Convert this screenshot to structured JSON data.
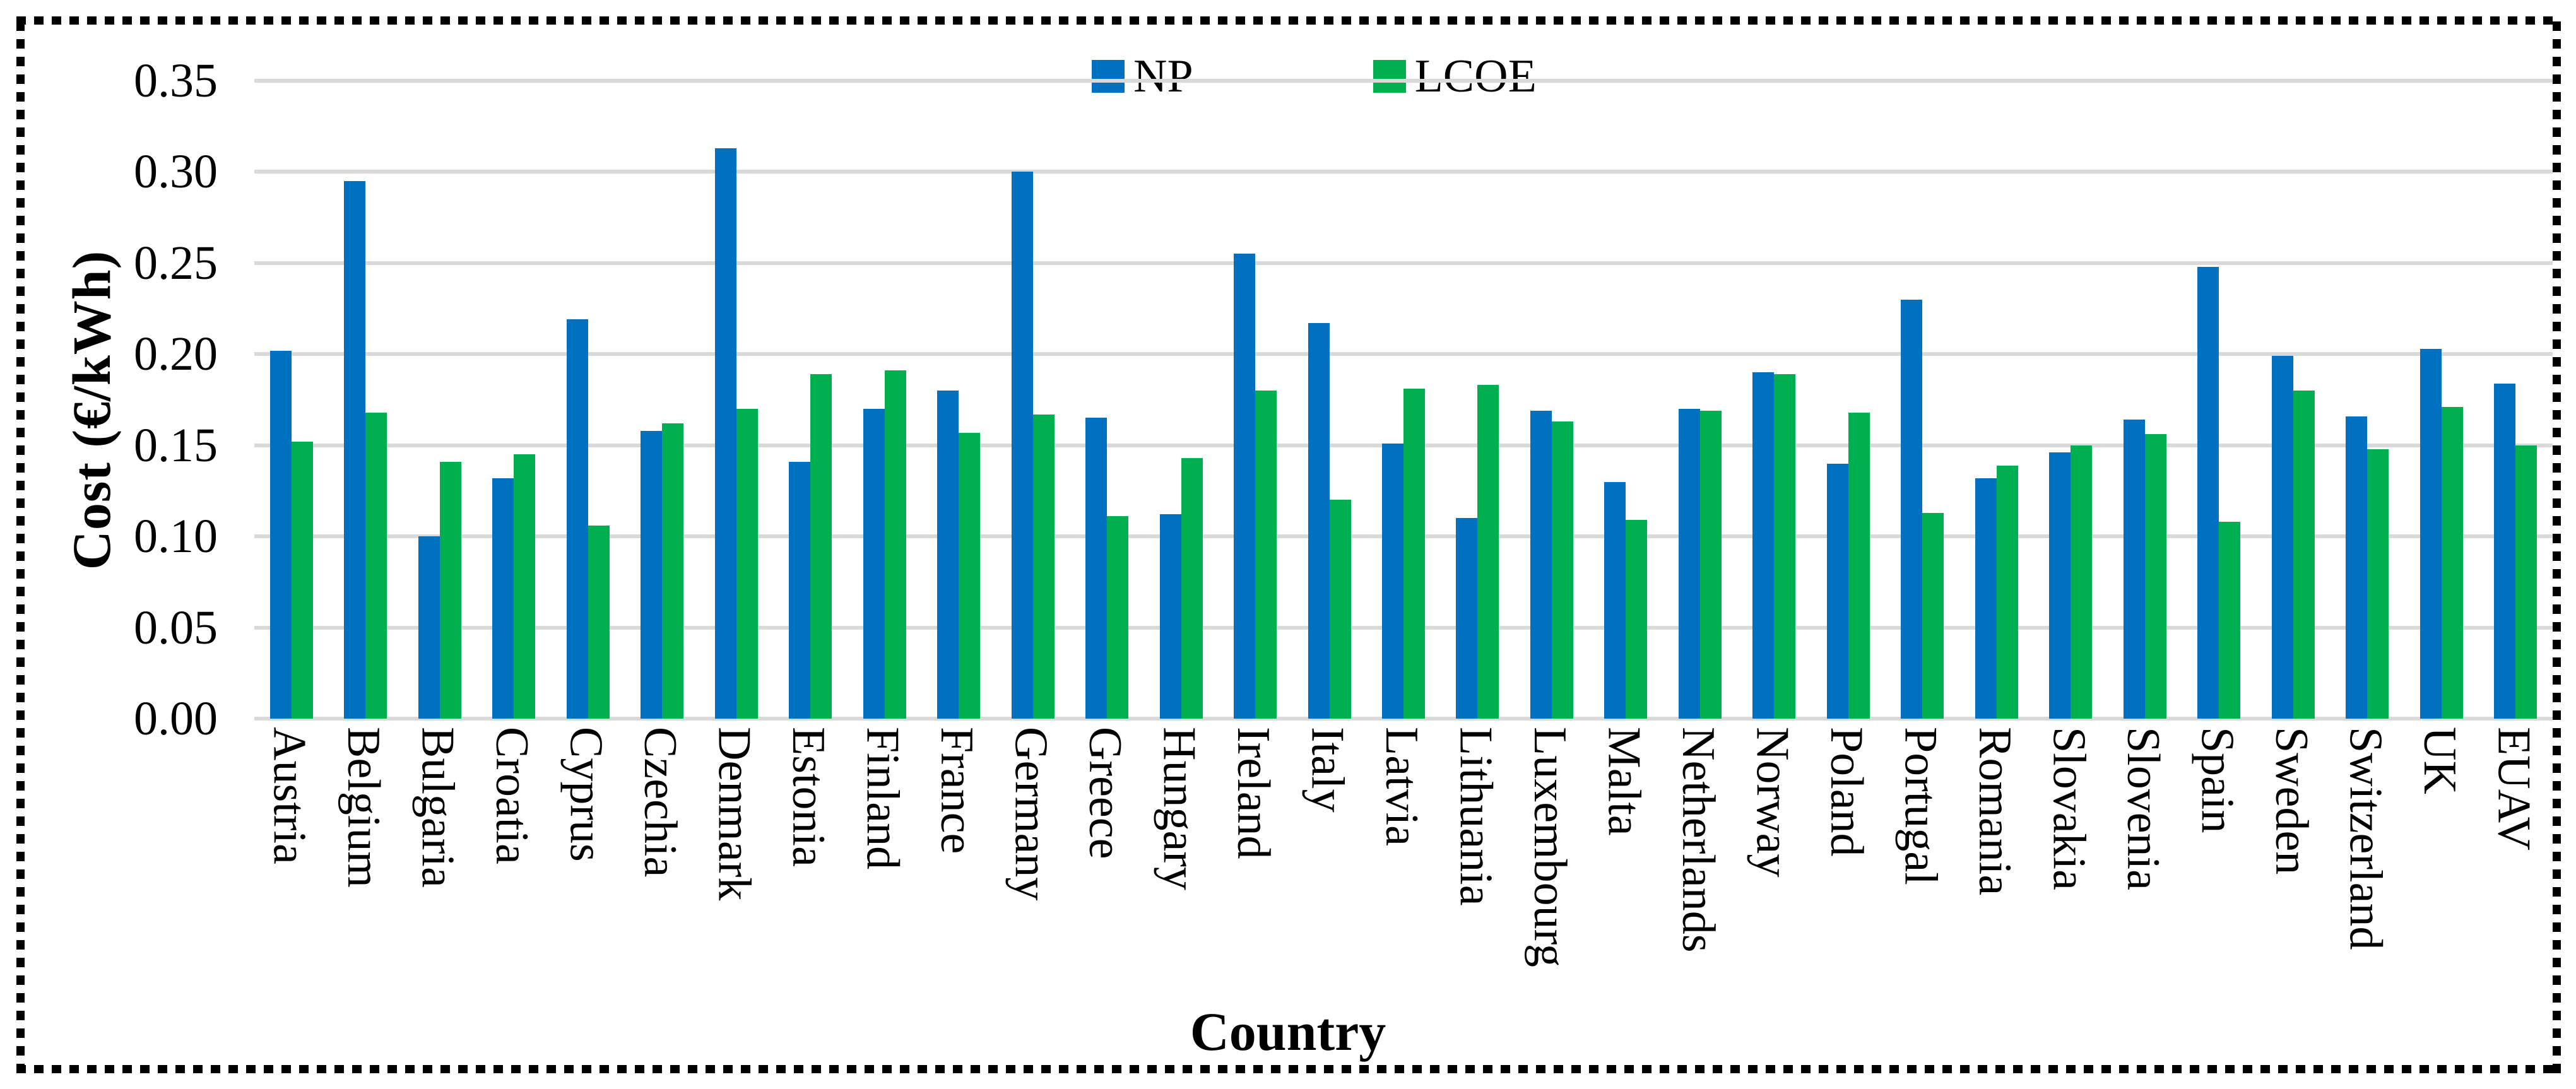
{
  "figure": {
    "border_style": "black dotted frame",
    "background": "#ffffff"
  },
  "legend": {
    "items": [
      {
        "label": "NP",
        "color": "#0070C0"
      },
      {
        "label": "LCOE",
        "color": "#00B050"
      }
    ],
    "position": "top-center"
  },
  "chart_data": {
    "type": "bar",
    "title": "",
    "xlabel": "Country",
    "ylabel": "Cost (€/kWh)",
    "ylim": [
      0,
      0.35
    ],
    "ytick_step": 0.05,
    "ytick_labels": [
      "0.35",
      "0.30",
      "0.25",
      "0.20",
      "0.15",
      "0.10",
      "0.05",
      "0.00"
    ],
    "grid": "horizontal",
    "gridline_color": "#D9D9D9",
    "legend_position": "top-center",
    "categories": [
      "Austria",
      "Belgium",
      "Bulgaria",
      "Croatia",
      "Cyprus",
      "Czechia",
      "Denmark",
      "Estonia",
      "Finland",
      "France",
      "Germany",
      "Greece",
      "Hungary",
      "Ireland",
      "Italy",
      "Latvia",
      "Lithuania",
      "Luxembourg",
      "Malta",
      "Netherlands",
      "Norway",
      "Poland",
      "Portugal",
      "Romania",
      "Slovakia",
      "Slovenia",
      "Spain",
      "Sweden",
      "Switzerland",
      "UK",
      "EUAV"
    ],
    "series": [
      {
        "name": "NP",
        "color": "#0070C0",
        "values": [
          0.202,
          0.295,
          0.1,
          0.132,
          0.219,
          0.158,
          0.313,
          0.141,
          0.17,
          0.18,
          0.3,
          0.165,
          0.112,
          0.255,
          0.217,
          0.151,
          0.11,
          0.169,
          0.13,
          0.17,
          0.19,
          0.14,
          0.23,
          0.132,
          0.146,
          0.164,
          0.248,
          0.199,
          0.166,
          0.203,
          0.184
        ]
      },
      {
        "name": "LCOE",
        "color": "#00B050",
        "values": [
          0.152,
          0.168,
          0.141,
          0.145,
          0.106,
          0.162,
          0.17,
          0.189,
          0.191,
          0.157,
          0.167,
          0.111,
          0.143,
          0.18,
          0.12,
          0.181,
          0.183,
          0.163,
          0.109,
          0.169,
          0.189,
          0.168,
          0.113,
          0.139,
          0.15,
          0.156,
          0.108,
          0.18,
          0.148,
          0.171,
          0.15
        ]
      }
    ]
  }
}
